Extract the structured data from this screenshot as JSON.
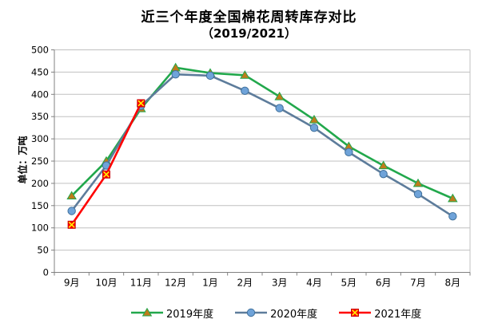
{
  "title": {
    "line1": "近三个年度全国棉花周转库存对比",
    "line2": "（2019/2021）"
  },
  "chart_data": {
    "type": "line",
    "title": "近三个年度全国棉花周转库存对比（2019/2021）",
    "ylabel": "单位：万吨",
    "xlabel": "",
    "ylim": [
      0,
      500
    ],
    "ytick_step": 50,
    "yticks": [
      0,
      50,
      100,
      150,
      200,
      250,
      300,
      350,
      400,
      450,
      500
    ],
    "grid": true,
    "legend_position": "bottom",
    "categories": [
      "9月",
      "10月",
      "11月",
      "12月",
      "1月",
      "2月",
      "3月",
      "4月",
      "5月",
      "6月",
      "7月",
      "8月"
    ],
    "series": [
      {
        "name": "2019年度",
        "marker": "triangle",
        "line_color": "#22A84C",
        "marker_fill": "#BF7B1B",
        "marker_edge": "#22A84C",
        "values": [
          172,
          250,
          368,
          460,
          448,
          443,
          395,
          343,
          283,
          240,
          200,
          166
        ]
      },
      {
        "name": "2020年度",
        "marker": "circle",
        "line_color": "#5D7C9B",
        "marker_fill": "#6FA3D9",
        "marker_edge": "#41719C",
        "values": [
          138,
          240,
          374,
          445,
          442,
          408,
          369,
          325,
          270,
          221,
          176,
          126
        ]
      },
      {
        "name": "2021年度",
        "marker": "x-square",
        "line_color": "#FF0000",
        "marker_fill": "#FF0000",
        "marker_edge": "#CC0000",
        "marker_cross": "#FFFF00",
        "values": [
          107,
          220,
          380,
          null,
          null,
          null,
          null,
          null,
          null,
          null,
          null,
          null
        ]
      }
    ],
    "colors": {
      "gridline": "#C0C0C0",
      "axis": "#808080",
      "background": "#FFFFFF",
      "text": "#000000"
    }
  }
}
